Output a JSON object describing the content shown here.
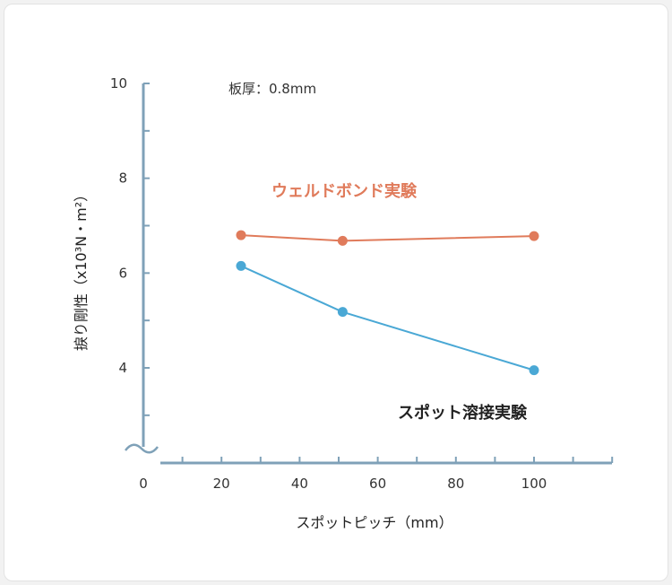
{
  "chart_data": {
    "type": "line",
    "annotation": "板厚：0.8mm",
    "xlabel": "スポットピッチ（mm）",
    "ylabel": "捩り剛性（x10³N・m²）",
    "x_ticks": [
      0,
      20,
      40,
      60,
      80,
      100
    ],
    "y_ticks": [
      4,
      6,
      8,
      10
    ],
    "xlim": [
      0,
      120
    ],
    "ylim": [
      2,
      10
    ],
    "axis_break": true,
    "grid": false,
    "series": [
      {
        "name": "ウェルドボンド実験",
        "color": "#e07b5b",
        "x": [
          25,
          51,
          100
        ],
        "y": [
          6.8,
          6.68,
          6.78
        ]
      },
      {
        "name": "スポット溶接実験",
        "color": "#4aa8d5",
        "x": [
          25,
          51,
          100
        ],
        "y": [
          6.15,
          5.18,
          3.95
        ]
      }
    ]
  },
  "colors": {
    "axis": "#7fa1b8",
    "background": "#ffffff"
  }
}
